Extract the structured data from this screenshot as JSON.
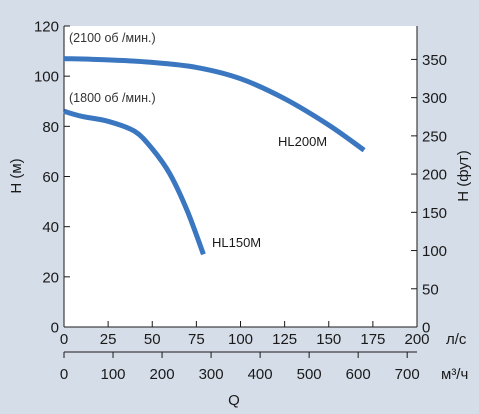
{
  "chart_data": {
    "type": "line",
    "y_left": {
      "label": "H (м)",
      "range": [
        0,
        120
      ],
      "ticks": [
        0,
        20,
        40,
        60,
        80,
        100,
        120
      ]
    },
    "y_right": {
      "label": "H (фут)",
      "range": [
        0,
        393.7
      ],
      "ticks": [
        0,
        50,
        100,
        150,
        200,
        250,
        300,
        350
      ]
    },
    "x_ls": {
      "unit": "л/с",
      "range": [
        0,
        200
      ],
      "ticks": [
        0,
        25,
        50,
        75,
        100,
        125,
        150,
        175,
        200
      ]
    },
    "x_m3h": {
      "unit": "м³/ч",
      "range": [
        0,
        720
      ],
      "ticks": [
        0,
        100,
        200,
        300,
        400,
        500,
        600,
        700
      ]
    },
    "x_title": "Q",
    "grid": false,
    "series": [
      {
        "name": "HL200M",
        "annotation": "(2100 об /мин.)",
        "color": "#3a77c0",
        "x": [
          0,
          25,
          50,
          75,
          100,
          125,
          150,
          170
        ],
        "y": [
          107,
          106.5,
          105.5,
          103.5,
          99,
          91,
          80.5,
          70.5
        ]
      },
      {
        "name": "HL150M",
        "annotation": "(1800 об /мин.)",
        "color": "#3a77c0",
        "x": [
          0,
          10,
          25,
          40,
          50,
          60,
          70,
          79
        ],
        "y": [
          86,
          84,
          82,
          78,
          71,
          61,
          46,
          29
        ]
      }
    ]
  }
}
